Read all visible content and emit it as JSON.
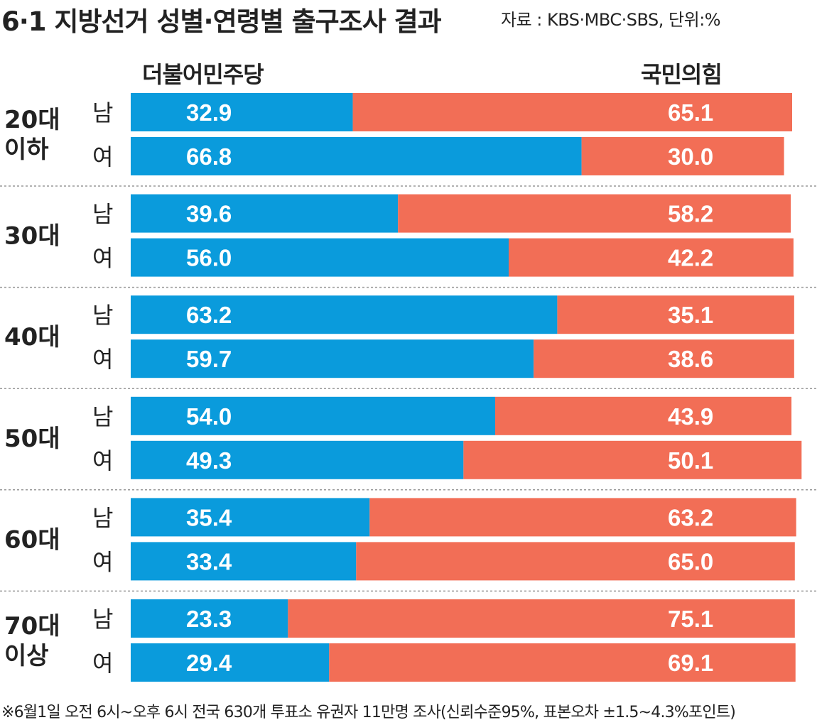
{
  "header": {
    "title": "6·1 지방선거 성별·연령별 출구조사 결과",
    "source": "자료 : KBS·MBC·SBS, 단위:%"
  },
  "parties": {
    "left": "더불어민주당",
    "right": "국민의힘"
  },
  "colors": {
    "democratic": "#0a9bdc",
    "ppp": "#f26e56",
    "divider": "#999999"
  },
  "footnote": "※6월1일 오전 6시~오후 6시 전국 630개 투표소 유권자 11만명 조사(신뢰수준95%, 표본오차 ±1.5~4.3%포인트)",
  "chart_data": {
    "type": "bar",
    "orientation": "horizontal-stacked",
    "title": "6·1 지방선거 성별·연령별 출구조사 결과",
    "unit": "%",
    "series": [
      {
        "name": "더불어민주당",
        "color": "#0a9bdc"
      },
      {
        "name": "국민의힘",
        "color": "#f26e56"
      }
    ],
    "groups": [
      {
        "age": [
          "20대",
          "이하"
        ],
        "rows": [
          {
            "sex": "남",
            "democratic": "32.9",
            "ppp": "65.1"
          },
          {
            "sex": "여",
            "democratic": "66.8",
            "ppp": "30.0"
          }
        ]
      },
      {
        "age": [
          "30대"
        ],
        "rows": [
          {
            "sex": "남",
            "democratic": "39.6",
            "ppp": "58.2"
          },
          {
            "sex": "여",
            "democratic": "56.0",
            "ppp": "42.2"
          }
        ]
      },
      {
        "age": [
          "40대"
        ],
        "rows": [
          {
            "sex": "남",
            "democratic": "63.2",
            "ppp": "35.1"
          },
          {
            "sex": "여",
            "democratic": "59.7",
            "ppp": "38.6"
          }
        ]
      },
      {
        "age": [
          "50대"
        ],
        "rows": [
          {
            "sex": "남",
            "democratic": "54.0",
            "ppp": "43.9"
          },
          {
            "sex": "여",
            "democratic": "49.3",
            "ppp": "50.1"
          }
        ]
      },
      {
        "age": [
          "60대"
        ],
        "rows": [
          {
            "sex": "남",
            "democratic": "35.4",
            "ppp": "63.2"
          },
          {
            "sex": "여",
            "democratic": "33.4",
            "ppp": "65.0"
          }
        ]
      },
      {
        "age": [
          "70대",
          "이상"
        ],
        "rows": [
          {
            "sex": "남",
            "democratic": "23.3",
            "ppp": "75.1"
          },
          {
            "sex": "여",
            "democratic": "29.4",
            "ppp": "69.1"
          }
        ]
      }
    ]
  }
}
